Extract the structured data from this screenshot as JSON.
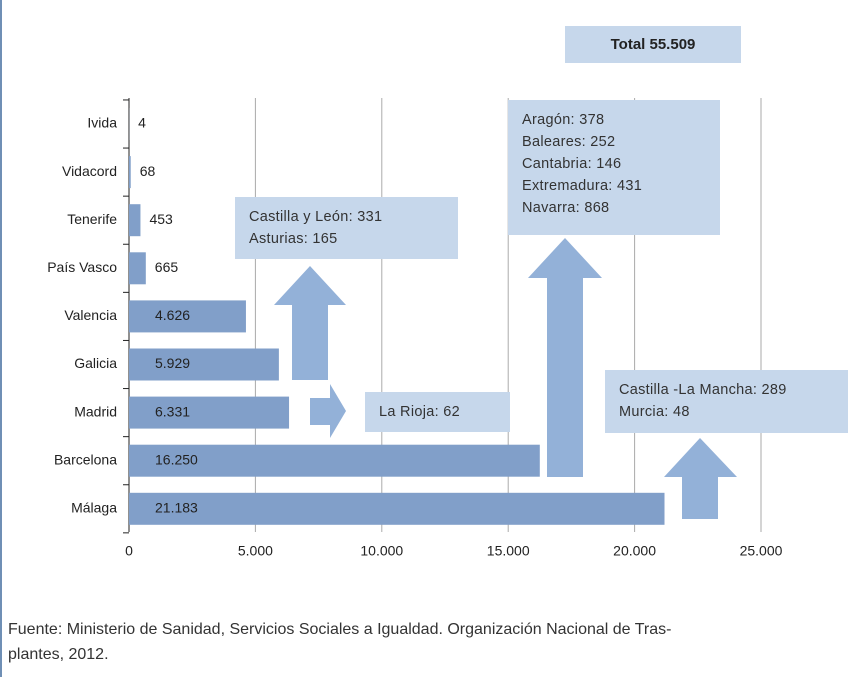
{
  "chart_data": {
    "type": "bar",
    "orientation": "horizontal",
    "categories": [
      "Ivida",
      "Vidacord",
      "Tenerife",
      "País Vasco",
      "Valencia",
      "Galicia",
      "Madrid",
      "Barcelona",
      "Málaga"
    ],
    "values": [
      4,
      68,
      453,
      665,
      4626,
      5929,
      6331,
      16250,
      21183
    ],
    "value_labels": [
      "4",
      "68",
      "453",
      "665",
      "4.626",
      "5.929",
      "6.331",
      "16.250",
      "21.183"
    ],
    "color": "#819fc9",
    "xlim": [
      0,
      25000
    ],
    "xticks": [
      0,
      {
        "value": 5000,
        "label": "5.000"
      },
      {
        "value": 10000,
        "label": "10.000"
      },
      {
        "value": 15000,
        "label": "15.000"
      },
      {
        "value": 20000,
        "label": "20.000"
      },
      {
        "value": 25000,
        "label": "25.000"
      }
    ],
    "grid": true,
    "total": "Total 55.509",
    "annotations": [
      {
        "lines": [
          "Castilla y León: 331",
          "Asturias: 165"
        ]
      },
      {
        "lines": [
          "La Rioja: 62"
        ]
      },
      {
        "lines": [
          "Aragón: 378",
          "Baleares: 252",
          "Cantabria: 146",
          "Extremadura: 431",
          "Navarra: 868"
        ]
      },
      {
        "lines": [
          "Castilla -La Mancha: 289",
          "Murcia: 48"
        ]
      }
    ],
    "source": [
      "Fuente: Ministerio de Sanidad, Servicios Sociales a Igualdad. Organización Nacional de Tras-",
      "plantes, 2012."
    ]
  }
}
